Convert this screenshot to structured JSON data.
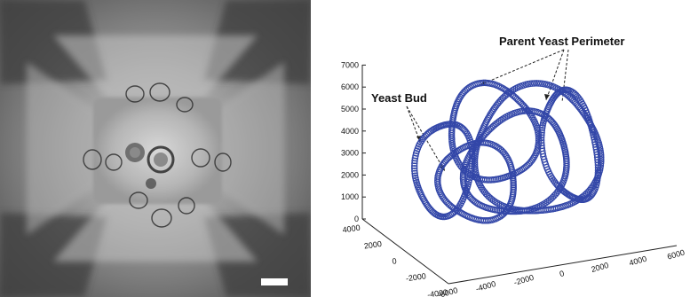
{
  "panels": {
    "micrograph": {
      "content": "brightfield-micrograph",
      "scale_bar": true
    },
    "plot3d": {
      "annotations": {
        "parent": "Parent Yeast Perimeter",
        "bud": "Yeast Bud"
      },
      "z_ticks": [
        "0",
        "1000",
        "2000",
        "3000",
        "4000",
        "5000",
        "6000",
        "7000"
      ],
      "y_ticks": [
        "4000",
        "2000",
        "0",
        "-2000",
        "-4000"
      ],
      "x_ticks": [
        "-6000",
        "-4000",
        "-2000",
        "0",
        "2000",
        "4000",
        "6000"
      ],
      "trace_color": "#3347a8"
    }
  }
}
